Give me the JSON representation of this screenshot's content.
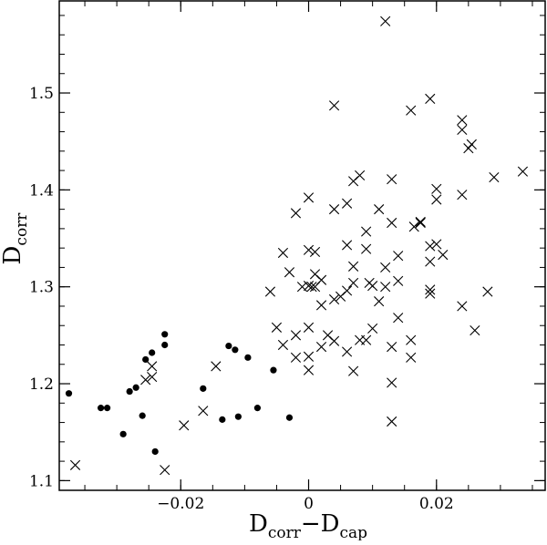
{
  "chart_data": {
    "type": "scatter",
    "title": "",
    "xlabel": "D_corr − D_cap",
    "ylabel": "D_corr",
    "xlabel_parts": {
      "base1": "D",
      "sub1": "corr",
      "minus": "−",
      "base2": "D",
      "sub2": "cap"
    },
    "ylabel_parts": {
      "base": "D",
      "sub": "corr"
    },
    "xlim": [
      -0.039,
      0.037
    ],
    "ylim": [
      1.09,
      1.595
    ],
    "x_ticks": [
      {
        "value": -0.02,
        "label": "−0.02"
      },
      {
        "value": 0,
        "label": "0"
      },
      {
        "value": 0.02,
        "label": "0.02"
      }
    ],
    "y_ticks": [
      {
        "value": 1.1,
        "label": "1.1"
      },
      {
        "value": 1.2,
        "label": "1.2"
      },
      {
        "value": 1.3,
        "label": "1.3"
      },
      {
        "value": 1.4,
        "label": "1.4"
      },
      {
        "value": 1.5,
        "label": "1.5"
      }
    ],
    "x_minor_step": 0.005,
    "y_minor_step": 0.02,
    "grid": false,
    "legend": "none",
    "series": [
      {
        "marker": "dot",
        "color": "#000000",
        "points": [
          [
            -0.0375,
            1.19
          ],
          [
            -0.0325,
            1.175
          ],
          [
            -0.0315,
            1.175
          ],
          [
            -0.029,
            1.148
          ],
          [
            -0.028,
            1.192
          ],
          [
            -0.027,
            1.196
          ],
          [
            -0.026,
            1.167
          ],
          [
            -0.0255,
            1.225
          ],
          [
            -0.0245,
            1.232
          ],
          [
            -0.024,
            1.13
          ],
          [
            -0.0225,
            1.251
          ],
          [
            -0.0225,
            1.24
          ],
          [
            -0.0165,
            1.195
          ],
          [
            -0.0135,
            1.163
          ],
          [
            -0.0125,
            1.239
          ],
          [
            -0.0115,
            1.235
          ],
          [
            -0.011,
            1.166
          ],
          [
            -0.0095,
            1.227
          ],
          [
            -0.008,
            1.175
          ],
          [
            -0.0055,
            1.214
          ],
          [
            -0.003,
            1.165
          ]
        ]
      },
      {
        "marker": "cross",
        "color": "#000000",
        "points": [
          [
            -0.0365,
            1.116
          ],
          [
            -0.0255,
            1.204
          ],
          [
            -0.0245,
            1.207
          ],
          [
            -0.0245,
            1.218
          ],
          [
            -0.0225,
            1.111
          ],
          [
            -0.0195,
            1.157
          ],
          [
            -0.0145,
            1.218
          ],
          [
            -0.0165,
            1.172
          ],
          [
            -0.006,
            1.295
          ],
          [
            -0.005,
            1.258
          ],
          [
            -0.004,
            1.24
          ],
          [
            -0.004,
            1.335
          ],
          [
            -0.003,
            1.315
          ],
          [
            -0.002,
            1.25
          ],
          [
            -0.002,
            1.376
          ],
          [
            -0.002,
            1.227
          ],
          [
            -0.001,
            1.3
          ],
          [
            0.0,
            1.301
          ],
          [
            0.0,
            1.214
          ],
          [
            0.0,
            1.228
          ],
          [
            0.0,
            1.258
          ],
          [
            0.0,
            1.338
          ],
          [
            0.0,
            1.392
          ],
          [
            0.0005,
            1.3
          ],
          [
            0.001,
            1.3
          ],
          [
            0.001,
            1.336
          ],
          [
            0.001,
            1.313
          ],
          [
            0.002,
            1.281
          ],
          [
            0.002,
            1.238
          ],
          [
            0.002,
            1.307
          ],
          [
            0.003,
            1.25
          ],
          [
            0.004,
            1.244
          ],
          [
            0.004,
            1.38
          ],
          [
            0.004,
            1.287
          ],
          [
            0.004,
            1.487
          ],
          [
            0.005,
            1.29
          ],
          [
            0.006,
            1.233
          ],
          [
            0.006,
            1.386
          ],
          [
            0.006,
            1.343
          ],
          [
            0.006,
            1.296
          ],
          [
            0.007,
            1.213
          ],
          [
            0.007,
            1.409
          ],
          [
            0.007,
            1.321
          ],
          [
            0.007,
            1.304
          ],
          [
            0.008,
            1.245
          ],
          [
            0.008,
            1.415
          ],
          [
            0.009,
            1.339
          ],
          [
            0.009,
            1.357
          ],
          [
            0.009,
            1.245
          ],
          [
            0.0095,
            1.304
          ],
          [
            0.01,
            1.301
          ],
          [
            0.01,
            1.257
          ],
          [
            0.011,
            1.38
          ],
          [
            0.011,
            1.285
          ],
          [
            0.012,
            1.32
          ],
          [
            0.012,
            1.574
          ],
          [
            0.012,
            1.3
          ],
          [
            0.013,
            1.161
          ],
          [
            0.013,
            1.201
          ],
          [
            0.013,
            1.238
          ],
          [
            0.013,
            1.366
          ],
          [
            0.013,
            1.411
          ],
          [
            0.014,
            1.268
          ],
          [
            0.014,
            1.306
          ],
          [
            0.014,
            1.332
          ],
          [
            0.016,
            1.482
          ],
          [
            0.016,
            1.245
          ],
          [
            0.016,
            1.227
          ],
          [
            0.0165,
            1.362
          ],
          [
            0.0175,
            1.366
          ],
          [
            0.0175,
            1.367
          ],
          [
            0.019,
            1.297
          ],
          [
            0.019,
            1.293
          ],
          [
            0.019,
            1.326
          ],
          [
            0.019,
            1.494
          ],
          [
            0.019,
            1.342
          ],
          [
            0.02,
            1.344
          ],
          [
            0.02,
            1.401
          ],
          [
            0.02,
            1.39
          ],
          [
            0.021,
            1.333
          ],
          [
            0.024,
            1.28
          ],
          [
            0.024,
            1.395
          ],
          [
            0.024,
            1.472
          ],
          [
            0.024,
            1.462
          ],
          [
            0.025,
            1.443
          ],
          [
            0.0255,
            1.447
          ],
          [
            0.026,
            1.255
          ],
          [
            0.028,
            1.295
          ],
          [
            0.029,
            1.413
          ],
          [
            0.0335,
            1.419
          ]
        ]
      }
    ]
  }
}
